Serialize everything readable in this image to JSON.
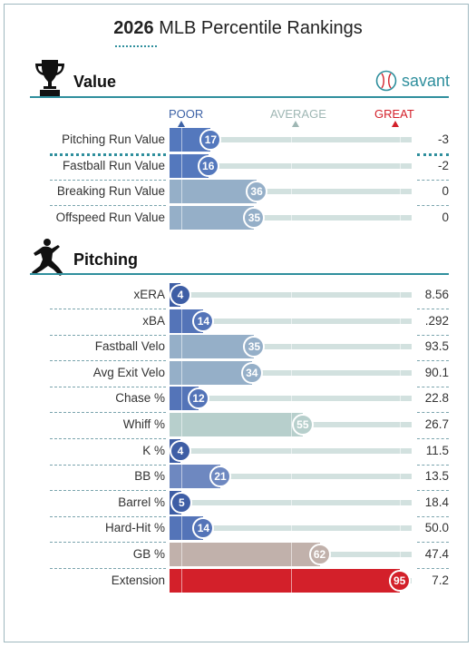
{
  "title": {
    "year": "2026",
    "text": "MLB Percentile Rankings"
  },
  "brand": {
    "name": "savant",
    "color": "#2f8f9d"
  },
  "scale": {
    "poor": "POOR",
    "average": "AVERAGE",
    "great": "GREAT",
    "poor_color": "#3d62a6",
    "average_color": "#9fb7b4",
    "great_color": "#d3202a"
  },
  "sections": [
    {
      "id": "value",
      "title": "Value",
      "icon": "trophy-icon",
      "rows": [
        {
          "label": "Pitching Run Value",
          "percentile": 17,
          "value": "-3",
          "color": "#5478bd",
          "highlight": true
        },
        {
          "label": "Fastball Run Value",
          "percentile": 16,
          "value": "-2",
          "color": "#5478bd"
        },
        {
          "label": "Breaking Run Value",
          "percentile": 36,
          "value": "0",
          "color": "#95afc8"
        },
        {
          "label": "Offspeed Run Value",
          "percentile": 35,
          "value": "0",
          "color": "#95afc8"
        }
      ]
    },
    {
      "id": "pitching",
      "title": "Pitching",
      "icon": "pitcher-icon",
      "rows": [
        {
          "label": "xERA",
          "percentile": 4,
          "value": "8.56",
          "color": "#3e5ea5"
        },
        {
          "label": "xBA",
          "percentile": 14,
          "value": ".292",
          "color": "#5474b8"
        },
        {
          "label": "Fastball Velo",
          "percentile": 35,
          "value": "93.5",
          "color": "#95afc8"
        },
        {
          "label": "Avg Exit Velo",
          "percentile": 34,
          "value": "90.1",
          "color": "#95afc8"
        },
        {
          "label": "Chase %",
          "percentile": 12,
          "value": "22.8",
          "color": "#5474b8"
        },
        {
          "label": "Whiff %",
          "percentile": 55,
          "value": "26.7",
          "color": "#b7cfcc"
        },
        {
          "label": "K %",
          "percentile": 4,
          "value": "11.5",
          "color": "#3e5ea5"
        },
        {
          "label": "BB %",
          "percentile": 21,
          "value": "13.5",
          "color": "#6e88c0"
        },
        {
          "label": "Barrel %",
          "percentile": 5,
          "value": "18.4",
          "color": "#3e5ea5"
        },
        {
          "label": "Hard-Hit %",
          "percentile": 14,
          "value": "50.0",
          "color": "#5474b8"
        },
        {
          "label": "GB %",
          "percentile": 62,
          "value": "47.4",
          "color": "#c1b1ab"
        },
        {
          "label": "Extension",
          "percentile": 95,
          "value": "7.2",
          "color": "#d3202a"
        }
      ]
    }
  ]
}
